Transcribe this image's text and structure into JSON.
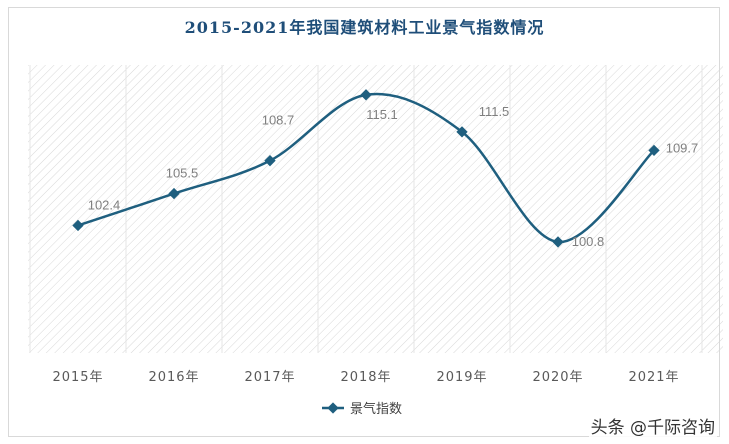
{
  "chart_data": {
    "type": "line",
    "title": "2015-2021年我国建筑材料工业景气指数情况",
    "categories": [
      "2015年",
      "2016年",
      "2017年",
      "2018年",
      "2019年",
      "2020年",
      "2021年"
    ],
    "series": [
      {
        "name": "景气指数",
        "values": [
          102.4,
          105.5,
          108.7,
          115.1,
          111.5,
          100.8,
          109.7
        ],
        "data_labels": [
          "102.4",
          "105.5",
          "108.7",
          "115.1",
          "111.5",
          "100.8",
          "109.7"
        ]
      }
    ],
    "ylim": [
      90,
      118
    ],
    "grid": false,
    "smooth": true,
    "legend_position": "bottom",
    "colors": {
      "line": "#1f5f7f",
      "marker": "#1f5f7f",
      "title": "#1f4e79",
      "label": "#7f7f7f",
      "tick": "#595959"
    }
  },
  "watermark": "头条 @千际咨询"
}
